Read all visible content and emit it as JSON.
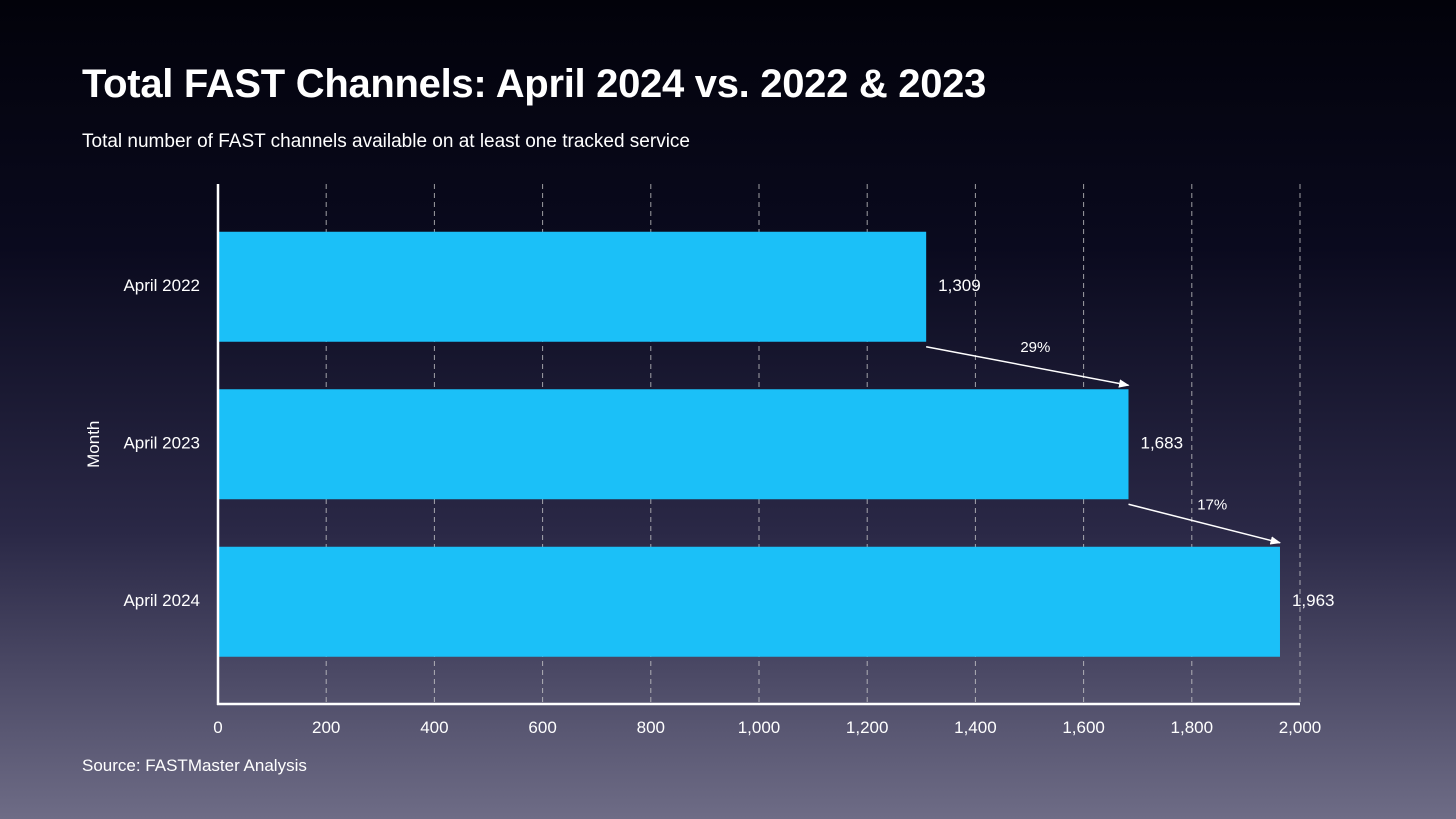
{
  "title": "Total FAST Channels: April 2024 vs. 2022 & 2023",
  "subtitle": "Total number of FAST channels available on at least one tracked service",
  "source": "Source: FASTMaster Analysis",
  "colors": {
    "bar": "#1bc0f8",
    "text": "#ffffff",
    "grid": "#d0d0d0"
  },
  "chart_data": {
    "type": "bar",
    "orientation": "horizontal",
    "categories": [
      "April 2022",
      "April 2023",
      "April 2024"
    ],
    "values": [
      1309,
      1683,
      1963
    ],
    "value_labels": [
      "1,309",
      "1,683",
      "1,963"
    ],
    "xlim": [
      0,
      2000
    ],
    "xticks": [
      0,
      200,
      400,
      600,
      800,
      1000,
      1200,
      1400,
      1600,
      1800,
      2000
    ],
    "xtick_labels": [
      "0",
      "200",
      "400",
      "600",
      "800",
      "1,000",
      "1,200",
      "1,400",
      "1,600",
      "1,800",
      "2,000"
    ],
    "ylabel": "Month",
    "xlabel": "",
    "grid": "vertical dashed",
    "annotations": [
      {
        "from": 0,
        "to": 1,
        "label": "29%"
      },
      {
        "from": 1,
        "to": 2,
        "label": "17%"
      }
    ]
  }
}
